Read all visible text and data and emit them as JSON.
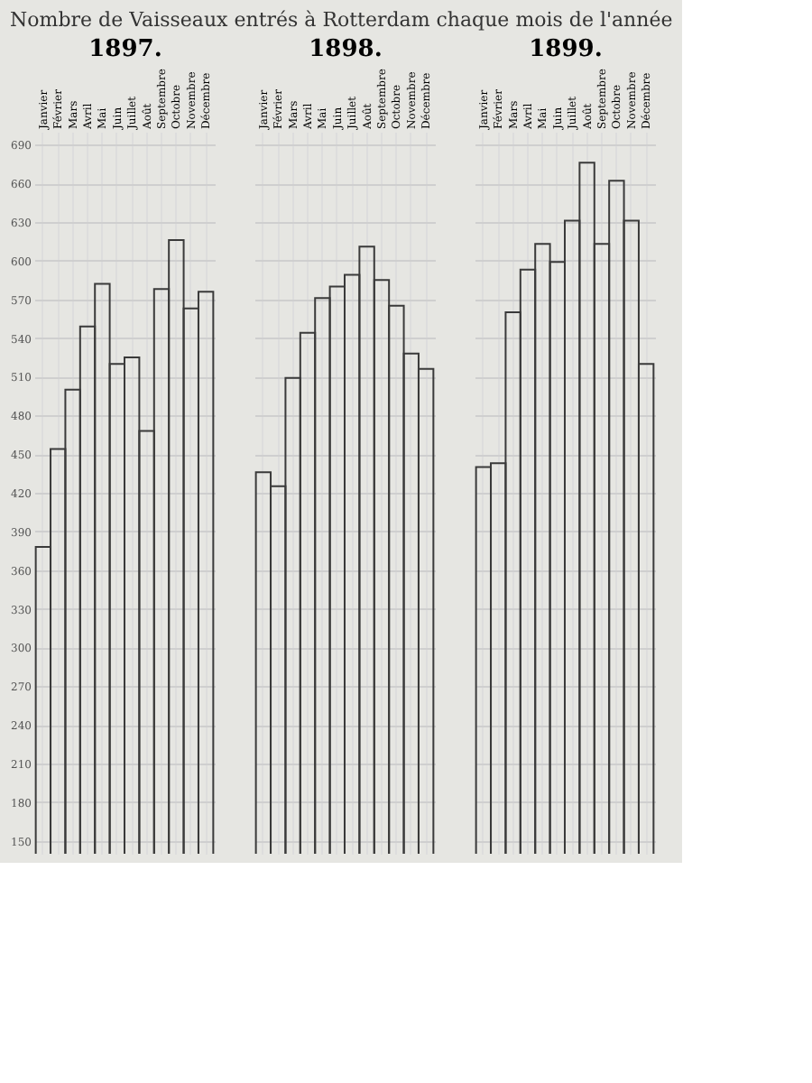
{
  "chart_data": [
    {
      "type": "bar",
      "title": "Nombre de Vaisseaux entrés à Rotterdam chaque mois de l'année",
      "xlabel": "1897.",
      "categories": [
        "Janvier",
        "Février",
        "Mars",
        "Avril",
        "Mai",
        "Juin",
        "Juillet",
        "Août",
        "Septembre",
        "Octobre",
        "Novembre",
        "Décembre"
      ],
      "values": [
        378,
        454,
        500,
        549,
        582,
        520,
        525,
        468,
        578,
        616,
        563,
        576
      ],
      "color": "#3a3a3a",
      "ylim": [
        140,
        700
      ],
      "yticks": [
        150,
        180,
        210,
        240,
        270,
        300,
        330,
        360,
        390,
        420,
        450,
        480,
        510,
        540,
        570,
        600,
        630,
        660,
        690
      ],
      "grid": true
    },
    {
      "type": "bar",
      "xlabel": "1898.",
      "categories": [
        "Janvier",
        "Février",
        "Mars",
        "Avril",
        "Mai",
        "Juin",
        "Juillet",
        "Août",
        "Septembre",
        "Octobre",
        "Novembre",
        "Décembre"
      ],
      "values": [
        436,
        425,
        509,
        544,
        571,
        580,
        589,
        611,
        585,
        565,
        528,
        516
      ],
      "color": "#3a3a3a",
      "ylim": [
        140,
        700
      ],
      "grid": true,
      "tick_labels": "x"
    },
    {
      "type": "bar",
      "xlabel": "1899.",
      "categories": [
        "Janvier",
        "Février",
        "Mars",
        "Avril",
        "Mai",
        "Juin",
        "Juillet",
        "Août",
        "Septembre",
        "Octobre",
        "Novembre",
        "Décembre"
      ],
      "values": [
        440,
        443,
        560,
        593,
        613,
        599,
        631,
        676,
        613,
        662,
        631,
        520
      ],
      "color": "#3a3a3a",
      "ylim": [
        140,
        700
      ],
      "grid": true,
      "tick_labels": "x"
    }
  ]
}
